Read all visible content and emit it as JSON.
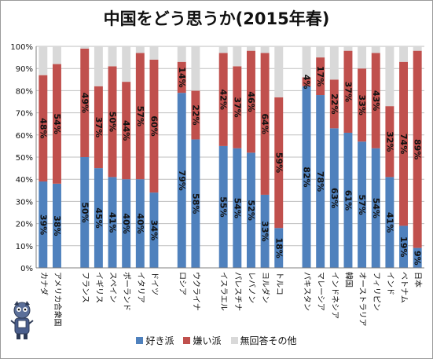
{
  "chart_data": {
    "type": "bar",
    "stacked": true,
    "title": "中国をどう思うか(2015年春)",
    "ylim": [
      0,
      100
    ],
    "yticks": [
      "0%",
      "10%",
      "20%",
      "30%",
      "40%",
      "50%",
      "60%",
      "70%",
      "80%",
      "90%",
      "100%"
    ],
    "grid": true,
    "legend_position": "bottom",
    "colors": {
      "favorable": "#4f81bd",
      "unfavorable": "#c0504d",
      "other": "#d9d9d9"
    },
    "categories": [
      {
        "name": "カナダ",
        "group": 0
      },
      {
        "name": "アメリカ合衆国",
        "group": 0
      },
      {
        "name": "フランス",
        "group": 1
      },
      {
        "name": "イギリス",
        "group": 1
      },
      {
        "name": "スペイン",
        "group": 1
      },
      {
        "name": "ポーランド",
        "group": 1
      },
      {
        "name": "イタリア",
        "group": 1
      },
      {
        "name": "ドイツ",
        "group": 1
      },
      {
        "name": "ロシア",
        "group": 2
      },
      {
        "name": "ウクライナ",
        "group": 2
      },
      {
        "name": "イスラエル",
        "group": 3
      },
      {
        "name": "パレスチナ",
        "group": 3
      },
      {
        "name": "レバノン",
        "group": 3
      },
      {
        "name": "ヨルダン",
        "group": 3
      },
      {
        "name": "トルコ",
        "group": 3
      },
      {
        "name": "パキスタン",
        "group": 4
      },
      {
        "name": "マレーシア",
        "group": 4
      },
      {
        "name": "インドネシア",
        "group": 4
      },
      {
        "name": "韓国",
        "group": 4
      },
      {
        "name": "オーストラリア",
        "group": 4
      },
      {
        "name": "フィリピン",
        "group": 4
      },
      {
        "name": "インド",
        "group": 4
      },
      {
        "name": "ベトナム",
        "group": 4
      },
      {
        "name": "日本",
        "group": 4
      }
    ],
    "series": [
      {
        "name": "好き派",
        "key": "favorable",
        "values": [
          39,
          38,
          50,
          45,
          41,
          40,
          40,
          34,
          79,
          58,
          55,
          54,
          52,
          33,
          18,
          82,
          78,
          63,
          61,
          57,
          54,
          41,
          19,
          9
        ],
        "labels": [
          "39%",
          "38%",
          "50%",
          "45%",
          "41%",
          "40%",
          "40%",
          "34%",
          "79%",
          "58%",
          "55%",
          "54%",
          "52%",
          "33%",
          "18%",
          "82%",
          "78%",
          "63%",
          "61%",
          "57%",
          "54%",
          "41%",
          "19%",
          "9%"
        ]
      },
      {
        "name": "嫌い派",
        "key": "unfavorable",
        "values": [
          48,
          54,
          49,
          37,
          50,
          44,
          57,
          60,
          14,
          22,
          42,
          37,
          46,
          64,
          59,
          4,
          17,
          22,
          37,
          33,
          43,
          32,
          74,
          89
        ],
        "labels": [
          "48%",
          "54%",
          "49%",
          "37%",
          "50%",
          "44%",
          "57%",
          "60%",
          "14%",
          "22%",
          "42%",
          "37%",
          "46%",
          "64%",
          "59%",
          "4%",
          "17%",
          "22%",
          "37%",
          "33%",
          "43%",
          "32%",
          "74%",
          "89%"
        ]
      },
      {
        "name": "無回答その他",
        "key": "other",
        "values": [
          13,
          8,
          1,
          18,
          9,
          16,
          3,
          6,
          7,
          20,
          3,
          9,
          2,
          3,
          23,
          14,
          5,
          15,
          2,
          10,
          3,
          27,
          7,
          2
        ]
      }
    ]
  }
}
